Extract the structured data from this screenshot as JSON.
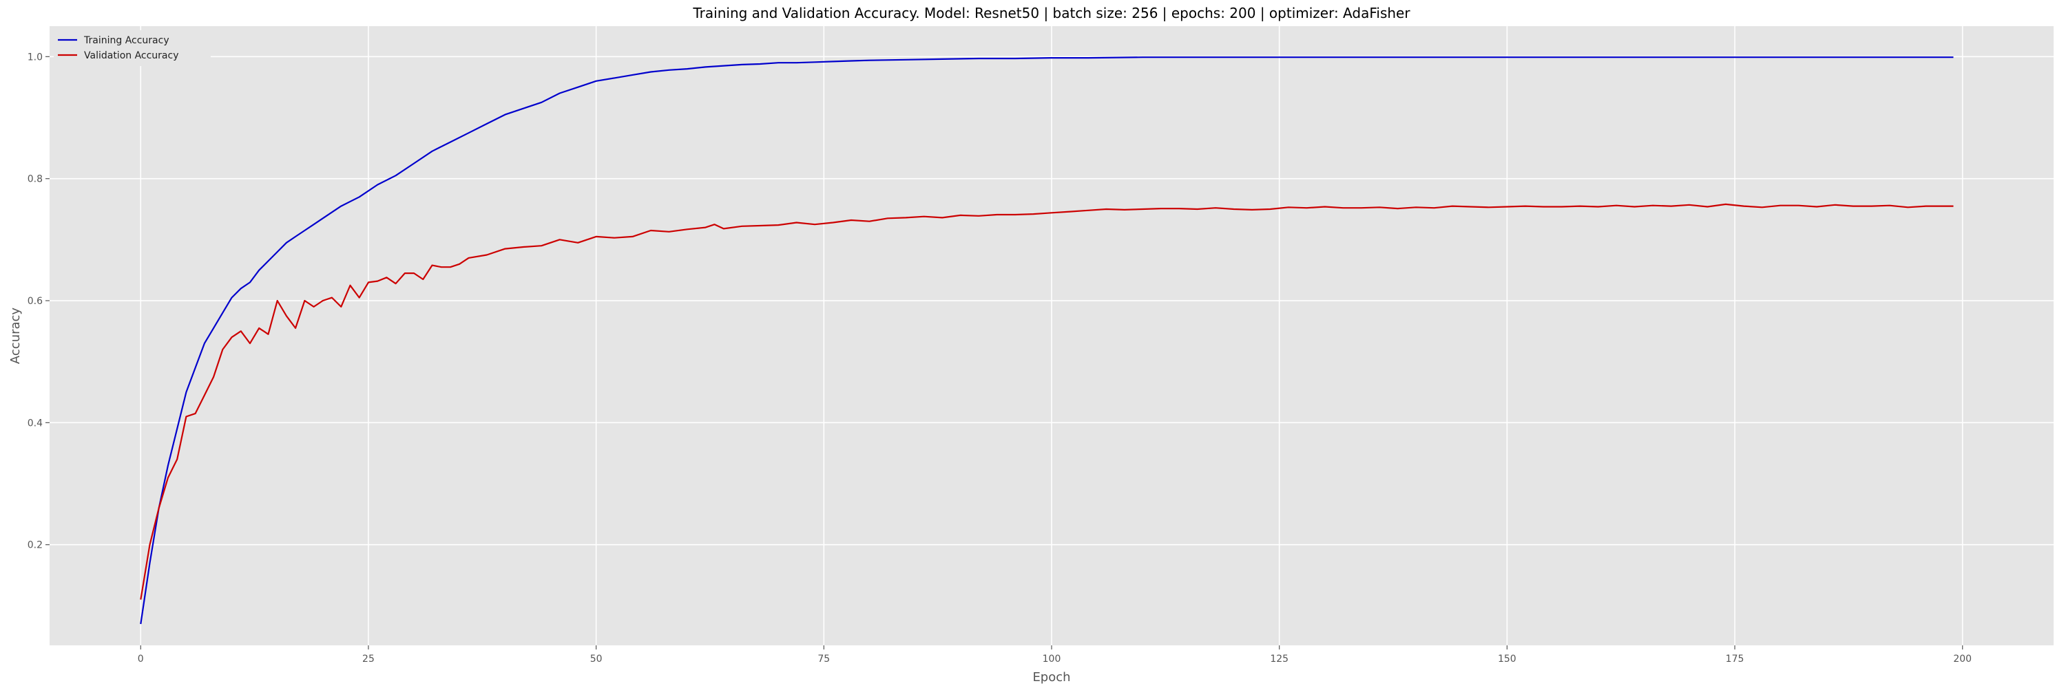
{
  "chart_data": {
    "type": "line",
    "title": "Training and Validation Accuracy. Model: Resnet50 | batch size: 256 | epochs: 200 | optimizer: AdaFisher",
    "xlabel": "Epoch",
    "ylabel": "Accuracy",
    "xlim": [
      -10,
      210
    ],
    "ylim": [
      0.035,
      1.05
    ],
    "x_ticks": [
      0,
      25,
      50,
      75,
      100,
      125,
      150,
      175,
      200
    ],
    "y_ticks": [
      0.2,
      0.4,
      0.6,
      0.8,
      1.0
    ],
    "x_tick_labels": [
      "0",
      "25",
      "50",
      "75",
      "100",
      "125",
      "150",
      "175",
      "200"
    ],
    "y_tick_labels": [
      "0.2",
      "0.4",
      "0.6",
      "0.8",
      "1.0"
    ],
    "grid": true,
    "legend_position": "top-left",
    "background_color": "#e5e5e5",
    "series": [
      {
        "name": "Training Accuracy",
        "color": "#0000cc",
        "x": [
          0,
          1,
          2,
          3,
          4,
          5,
          6,
          7,
          8,
          9,
          10,
          11,
          12,
          13,
          14,
          15,
          16,
          17,
          18,
          19,
          20,
          22,
          24,
          26,
          28,
          30,
          32,
          34,
          36,
          38,
          40,
          42,
          44,
          46,
          48,
          50,
          52,
          54,
          56,
          58,
          60,
          62,
          64,
          66,
          68,
          70,
          72,
          74,
          76,
          78,
          80,
          84,
          88,
          92,
          96,
          100,
          104,
          110,
          120,
          130,
          140,
          150,
          160,
          170,
          180,
          190,
          199
        ],
        "values": [
          0.07,
          0.17,
          0.26,
          0.33,
          0.39,
          0.45,
          0.49,
          0.53,
          0.555,
          0.58,
          0.605,
          0.62,
          0.63,
          0.65,
          0.665,
          0.68,
          0.695,
          0.705,
          0.715,
          0.725,
          0.735,
          0.755,
          0.77,
          0.79,
          0.805,
          0.825,
          0.845,
          0.86,
          0.875,
          0.89,
          0.905,
          0.915,
          0.925,
          0.94,
          0.95,
          0.96,
          0.965,
          0.97,
          0.975,
          0.978,
          0.98,
          0.983,
          0.985,
          0.987,
          0.988,
          0.99,
          0.99,
          0.991,
          0.992,
          0.993,
          0.994,
          0.995,
          0.996,
          0.997,
          0.997,
          0.998,
          0.998,
          0.999,
          0.999,
          0.999,
          0.999,
          0.999,
          0.999,
          0.999,
          0.999,
          0.999,
          0.999
        ]
      },
      {
        "name": "Validation Accuracy",
        "color": "#cc0000",
        "x": [
          0,
          1,
          2,
          3,
          4,
          5,
          6,
          7,
          8,
          9,
          10,
          11,
          12,
          13,
          14,
          15,
          16,
          17,
          18,
          19,
          20,
          21,
          22,
          23,
          24,
          25,
          26,
          27,
          28,
          29,
          30,
          31,
          32,
          33,
          34,
          35,
          36,
          38,
          40,
          42,
          44,
          46,
          48,
          50,
          52,
          54,
          56,
          58,
          60,
          62,
          63,
          64,
          66,
          68,
          70,
          72,
          74,
          76,
          78,
          80,
          82,
          84,
          86,
          88,
          90,
          92,
          94,
          96,
          98,
          100,
          102,
          104,
          106,
          108,
          110,
          112,
          114,
          116,
          118,
          120,
          122,
          124,
          126,
          128,
          130,
          132,
          134,
          136,
          138,
          140,
          142,
          144,
          146,
          148,
          150,
          152,
          154,
          156,
          158,
          160,
          162,
          164,
          166,
          168,
          170,
          172,
          174,
          176,
          178,
          180,
          182,
          184,
          186,
          188,
          190,
          192,
          194,
          196,
          199
        ],
        "values": [
          0.11,
          0.2,
          0.26,
          0.31,
          0.34,
          0.41,
          0.415,
          0.445,
          0.475,
          0.52,
          0.54,
          0.55,
          0.53,
          0.555,
          0.545,
          0.6,
          0.575,
          0.555,
          0.6,
          0.59,
          0.6,
          0.605,
          0.59,
          0.625,
          0.605,
          0.63,
          0.632,
          0.638,
          0.628,
          0.645,
          0.645,
          0.635,
          0.658,
          0.655,
          0.655,
          0.66,
          0.67,
          0.675,
          0.685,
          0.688,
          0.69,
          0.7,
          0.695,
          0.705,
          0.703,
          0.705,
          0.715,
          0.713,
          0.717,
          0.72,
          0.725,
          0.718,
          0.722,
          0.723,
          0.724,
          0.728,
          0.725,
          0.728,
          0.732,
          0.73,
          0.735,
          0.736,
          0.738,
          0.736,
          0.74,
          0.739,
          0.741,
          0.741,
          0.742,
          0.744,
          0.746,
          0.748,
          0.75,
          0.749,
          0.75,
          0.751,
          0.751,
          0.75,
          0.752,
          0.75,
          0.749,
          0.75,
          0.753,
          0.752,
          0.754,
          0.752,
          0.752,
          0.753,
          0.751,
          0.753,
          0.752,
          0.755,
          0.754,
          0.753,
          0.754,
          0.755,
          0.754,
          0.754,
          0.755,
          0.754,
          0.756,
          0.754,
          0.756,
          0.755,
          0.757,
          0.754,
          0.758,
          0.755,
          0.753,
          0.756,
          0.756,
          0.754,
          0.757,
          0.755,
          0.755,
          0.756,
          0.753,
          0.755,
          0.755
        ]
      }
    ]
  }
}
